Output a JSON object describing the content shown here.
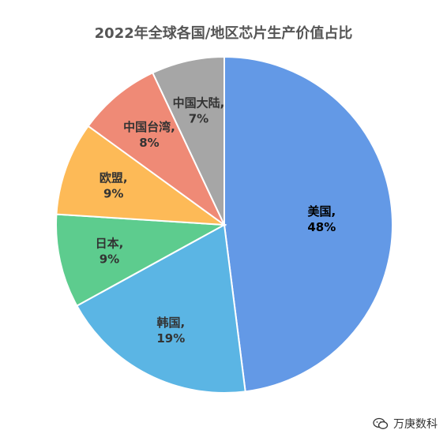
{
  "chart_data": {
    "type": "pie",
    "title": "2022年全球各国/地区芯片生产价值占比",
    "unit": "%",
    "slices": [
      {
        "label": "美国",
        "value": 48,
        "color": "#6399E6",
        "text_color": "#000000"
      },
      {
        "label": "韩国",
        "value": 19,
        "color": "#5BB5E4",
        "text_color": "#333333"
      },
      {
        "label": "日本",
        "value": 9,
        "color": "#5DCC8E",
        "text_color": "#333333"
      },
      {
        "label": "欧盟",
        "value": 9,
        "color": "#FDBA57",
        "text_color": "#333333"
      },
      {
        "label": "中国台湾",
        "value": 8,
        "color": "#EF8A76",
        "text_color": "#333333"
      },
      {
        "label": "中国大陆",
        "value": 7,
        "color": "#A6A6A6",
        "text_color": "#333333"
      }
    ],
    "start_angle_deg": 0,
    "direction": "clockwise",
    "legend": "none"
  },
  "watermark": {
    "icon": "wechat-icon",
    "text": "万庚数科"
  }
}
